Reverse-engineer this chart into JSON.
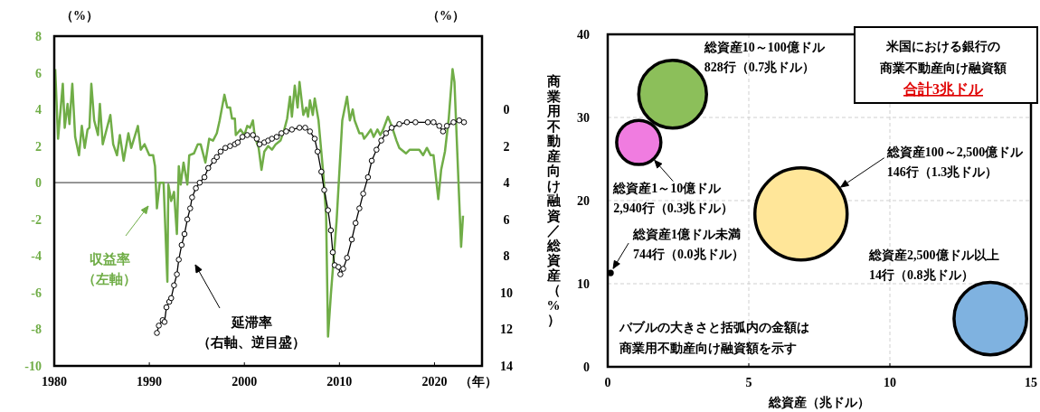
{
  "chart_data": [
    {
      "type": "line",
      "xlim": [
        1980,
        2025
      ],
      "xticks": [
        1980,
        1990,
        2000,
        2010,
        2020
      ],
      "xlabel": "（年）",
      "ylabel": "（%）",
      "y2label": "（%）",
      "ylim": [
        -10,
        8
      ],
      "yticks": [
        -10,
        -8,
        -6,
        -4,
        -2,
        0,
        2,
        4,
        6,
        8
      ],
      "y2lim": [
        14,
        -4
      ],
      "y2ticks": [
        0,
        2,
        4,
        6,
        8,
        10,
        12,
        14
      ],
      "ref_lines": [
        {
          "axis": "y",
          "value": 0,
          "color": "#595959"
        }
      ],
      "annotations": [
        "（左軸）",
        "（右軸、逆目盛）"
      ],
      "series": [
        {
          "name": "収益率",
          "color": "#70ad47",
          "x": [
            1980.1,
            1980.4,
            1980.9,
            1981.1,
            1981.4,
            1981.6,
            1981.9,
            1982.2,
            1982.6,
            1982.9,
            1983.2,
            1983.5,
            1983.7,
            1983.9,
            1984.2,
            1984.6,
            1984.8,
            1985.1,
            1985.4,
            1985.9,
            1986.2,
            1986.6,
            1986.9,
            1987.3,
            1987.8,
            1988.1,
            1988.8,
            1989.1,
            1989.5,
            1990.0,
            1990.4,
            1990.6,
            1990.8,
            1991.1,
            1991.5,
            1991.9,
            1992.0,
            1992.3,
            1992.6,
            1992.9,
            1993.1,
            1993.3,
            1993.6,
            1994.0,
            1994.2,
            1994.7,
            1995.1,
            1995.4,
            1995.9,
            1996.3,
            1996.7,
            1997.1,
            1997.4,
            1997.9,
            1998.2,
            1998.5,
            1998.7,
            1999.0,
            1999.1,
            1999.6,
            2000.0,
            2000.3,
            2000.6,
            2000.9,
            2001.1,
            2001.5,
            2001.8,
            2002.1,
            2002.5,
            2002.9,
            2003.3,
            2003.8,
            2004.2,
            2004.5,
            2004.8,
            2005.0,
            2005.3,
            2005.6,
            2005.8,
            2006.2,
            2006.5,
            2006.7,
            2006.9,
            2007.2,
            2007.4,
            2007.8,
            2008.3,
            2008.6,
            2008.8,
            2009.1,
            2009.7,
            2010.3,
            2010.8,
            2011.1,
            2011.4,
            2011.6,
            2012.1,
            2012.4,
            2012.6,
            2012.9,
            2013.3,
            2013.6,
            2014.0,
            2014.3,
            2014.6,
            2015.1,
            2015.5,
            2016.0,
            2016.3,
            2017.0,
            2017.4,
            2017.9,
            2018.4,
            2018.8,
            2019.2,
            2019.6,
            2019.9,
            2020.4,
            2020.7,
            2021.1,
            2021.5,
            2021.9,
            2022.1,
            2022.8,
            2023.0
          ],
          "values": [
            6.2,
            2.4,
            5.4,
            3.0,
            4.3,
            3.2,
            5.4,
            2.5,
            1.5,
            3.1,
            1.9,
            2.9,
            3.0,
            5.4,
            3.4,
            2.6,
            4.3,
            2.1,
            2.7,
            3.7,
            2.1,
            1.5,
            2.6,
            1.2,
            2.7,
            1.9,
            3.1,
            1.8,
            2.1,
            1.5,
            1.5,
            0.9,
            -1.4,
            0.0,
            0.0,
            -5.4,
            -0.1,
            -1.0,
            -0.5,
            -2.8,
            0.9,
            -0.1,
            1.1,
            -0.1,
            1.5,
            1.6,
            2.1,
            2.1,
            1.1,
            2.4,
            2.3,
            2.7,
            3.4,
            4.8,
            4.1,
            4.1,
            3.5,
            3.5,
            2.6,
            2.9,
            2.6,
            3.1,
            3.0,
            3.4,
            2.5,
            1.9,
            0.7,
            1.7,
            2.0,
            1.8,
            2.1,
            2.3,
            2.9,
            3.5,
            4.7,
            3.6,
            5.3,
            4.1,
            5.5,
            3.7,
            4.1,
            3.6,
            4.5,
            3.7,
            4.6,
            3.4,
            0.5,
            -1.8,
            -8.4,
            -6.1,
            -2.1,
            3.4,
            4.7,
            3.4,
            4.0,
            3.4,
            2.7,
            2.7,
            2.4,
            2.6,
            2.9,
            2.5,
            2.9,
            2.6,
            2.9,
            3.6,
            3.1,
            2.3,
            1.9,
            1.6,
            1.8,
            1.8,
            1.8,
            1.5,
            1.9,
            1.5,
            1.5,
            -0.9,
            0.7,
            1.7,
            3.5,
            6.2,
            5.5,
            -3.5,
            -1.8
          ]
        },
        {
          "name": "延滞率",
          "color": "#000000",
          "axis": "y2",
          "marker": "circle",
          "x": [
            1990.8,
            1991.0,
            1991.4,
            1991.6,
            1991.8,
            1992.1,
            1992.3,
            1992.6,
            1992.9,
            1993.1,
            1993.4,
            1993.7,
            1994.0,
            1994.3,
            1994.5,
            1994.9,
            1995.3,
            1995.8,
            1996.2,
            1996.8,
            1997.1,
            1997.5,
            1998.0,
            1998.5,
            1999.0,
            1999.3,
            1999.8,
            2000.3,
            2000.9,
            2001.3,
            2001.6,
            2002.1,
            2002.5,
            2002.9,
            2003.4,
            2003.9,
            2004.4,
            2005.0,
            2005.8,
            2006.4,
            2006.9,
            2007.4,
            2007.7,
            2008.1,
            2008.4,
            2008.8,
            2009.1,
            2009.3,
            2009.5,
            2009.9,
            2010.1,
            2010.4,
            2010.8,
            2011.3,
            2011.7,
            2012.1,
            2012.5,
            2013.0,
            2013.4,
            2013.9,
            2014.4,
            2014.9,
            2015.5,
            2016.3,
            2017.1,
            2018.0,
            2019.3,
            2019.9,
            2020.5,
            2020.9,
            2021.3,
            2022.0,
            2022.6,
            2023.1
          ],
          "values": [
            12.2,
            11.8,
            11.5,
            11.6,
            10.8,
            10.5,
            10.3,
            9.6,
            9.0,
            8.2,
            7.4,
            6.8,
            6.0,
            5.4,
            4.8,
            4.3,
            4.0,
            3.7,
            3.2,
            2.8,
            2.6,
            2.3,
            2.1,
            2.0,
            1.9,
            1.8,
            1.5,
            1.4,
            1.4,
            1.6,
            1.9,
            1.8,
            1.7,
            1.6,
            1.5,
            1.3,
            1.2,
            1.1,
            1.0,
            1.0,
            1.2,
            1.6,
            2.3,
            3.4,
            4.4,
            5.5,
            6.6,
            7.8,
            8.5,
            8.6,
            9.0,
            8.7,
            8.1,
            7.1,
            6.2,
            5.4,
            4.6,
            3.7,
            2.8,
            2.2,
            1.7,
            1.3,
            1.0,
            0.8,
            0.7,
            0.7,
            0.7,
            0.7,
            0.9,
            1.2,
            0.9,
            0.7,
            0.6,
            0.7
          ]
        }
      ]
    },
    {
      "type": "bubble",
      "xlim": [
        0,
        15
      ],
      "xticks": [
        0,
        5,
        10,
        15
      ],
      "ylim": [
        0,
        40
      ],
      "yticks": [
        0,
        10,
        20,
        30,
        40
      ],
      "xlabel": "総資産（兆ドル）",
      "ylabel": "商業用不動産向け融資／総資産（%）",
      "grid": true,
      "annotations": [
        "米国における銀行の",
        "商業不動産向け融資額",
        "合計3兆ドル",
        "バブルの大きさと括弧内の金額は",
        "商業用不動産向け融資額を示す",
        "744行（0.0兆ドル）",
        "2,940行（0.3兆ドル）",
        "828行（0.7兆ドル）",
        "146行（1.3兆ドル）",
        "14行（0.8兆ドル）"
      ],
      "series": [
        {
          "name": "総資産1億ドル未満",
          "color": "#000000",
          "x": [
            0.1
          ],
          "values": [
            11.3
          ],
          "sizes": [
            0.005
          ]
        },
        {
          "name": "総資産1～10億ドル",
          "color": "#f07ce0",
          "x": [
            1.1
          ],
          "values": [
            27.0
          ],
          "sizes": [
            0.23
          ]
        },
        {
          "name": "総資産10～100億ドル",
          "color": "#8cbf5a",
          "x": [
            2.3
          ],
          "values": [
            32.8
          ],
          "sizes": [
            0.54
          ]
        },
        {
          "name": "総資産100～2,500億ドル",
          "color": "#ffe699",
          "x": [
            6.85
          ],
          "values": [
            18.4
          ],
          "sizes": [
            1
          ]
        },
        {
          "name": "総資産2,500億ドル以上",
          "color": "#7fb2e0",
          "x": [
            13.56
          ],
          "values": [
            5.8
          ],
          "sizes": [
            0.62
          ]
        }
      ]
    }
  ]
}
